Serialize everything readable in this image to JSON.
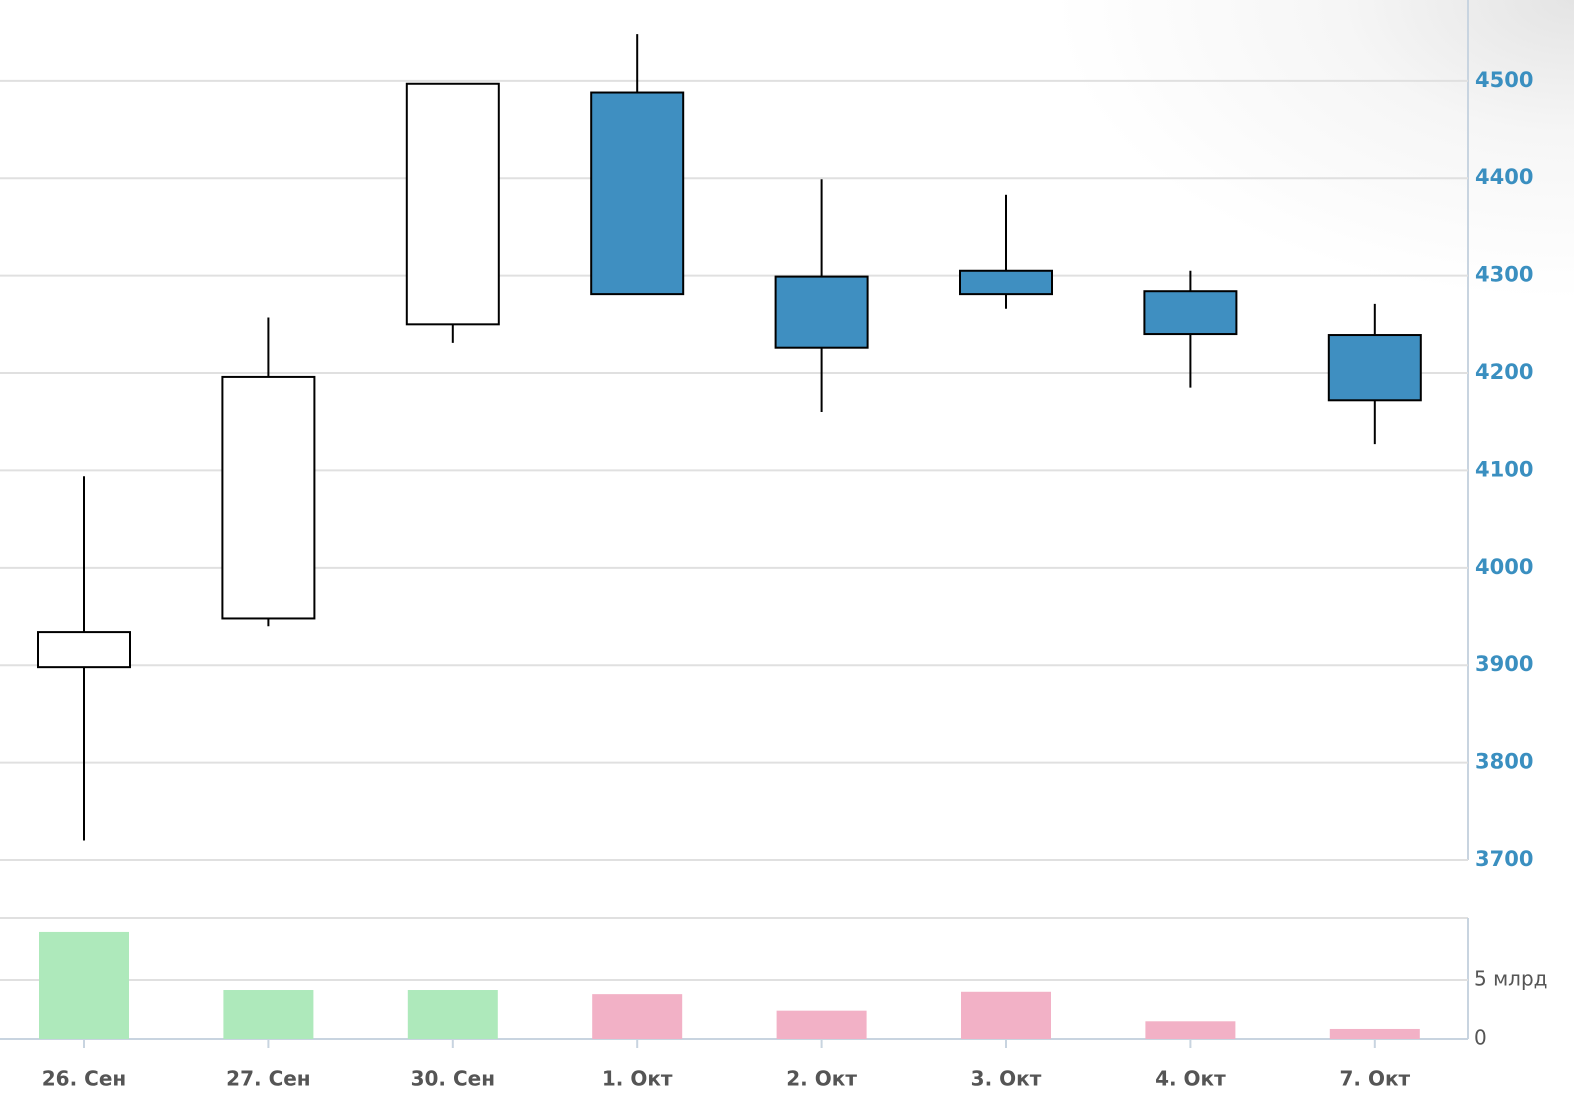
{
  "chart_data": {
    "type": "candlestick",
    "categories": [
      "26. Сен",
      "27. Сен",
      "30. Сен",
      "1. Окт",
      "2. Окт",
      "3. Окт",
      "4. Окт",
      "7. Окт"
    ],
    "open": [
      3898,
      3948,
      4250,
      4488,
      4299,
      4305,
      4284,
      4239
    ],
    "high": [
      4094,
      4257,
      4497,
      4548,
      4399,
      4383,
      4305,
      4271
    ],
    "low": [
      3720,
      3940,
      4231,
      4281,
      4160,
      4266,
      4185,
      4127
    ],
    "close": [
      3934,
      4196,
      4497,
      4281,
      4226,
      4281,
      4240,
      4172
    ],
    "up_color": "#ffffff",
    "down_color": "#3f8fc1",
    "ylim": [
      3700,
      4583
    ],
    "yticks": [
      3700,
      3800,
      3900,
      4000,
      4100,
      4200,
      4300,
      4400,
      4500
    ],
    "grid": true,
    "volume": {
      "type": "bar",
      "values": [
        9.07,
        4.15,
        4.15,
        3.8,
        2.4,
        4.0,
        1.5,
        0.85
      ],
      "colors": [
        "#aee9bb",
        "#aee9bb",
        "#aee9bb",
        "#f2b1c6",
        "#f2b1c6",
        "#f2b1c6",
        "#f2b1c6",
        "#f2b1c6"
      ],
      "ylim": [
        0,
        10.25
      ],
      "yticks": [
        0,
        {
          "value": 5,
          "label": "5 млрд"
        }
      ]
    }
  }
}
